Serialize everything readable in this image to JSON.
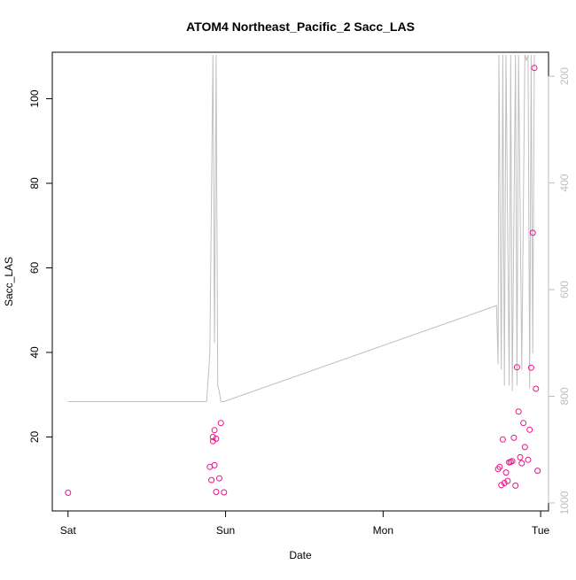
{
  "chart_data": {
    "type": "scatter",
    "title": "ATOM4 Northeast_Pacific_2 Sacc_LAS",
    "xlabel": "Date",
    "ylabel": "Sacc_LAS",
    "x_tick_labels": [
      "Sat",
      "Sun",
      "Mon",
      "Tue"
    ],
    "x_ticks": [
      0,
      1,
      2,
      3
    ],
    "xlim": [
      -0.1,
      3.05
    ],
    "ylim": [
      2.5,
      111
    ],
    "y_ticks": [
      20,
      40,
      60,
      80,
      100
    ],
    "y_tick_labels": [
      "20",
      "40",
      "60",
      "80",
      "100"
    ],
    "right_axis": {
      "ylim": [
        1015,
        155
      ],
      "ticks": [
        200,
        400,
        600,
        800,
        1000
      ],
      "tick_labels": [
        "200",
        "400",
        "600",
        "800",
        "1000"
      ],
      "color": "#bebebe"
    },
    "grid": false,
    "legend": "none",
    "colors": {
      "points": "#ee1289",
      "line": "#c0c0c0",
      "axes": "#000000"
    },
    "series": [
      {
        "type": "scatter",
        "x": [
          0.0,
          0.9,
          0.91,
          0.92,
          0.92,
          0.93,
          0.93,
          0.94,
          0.94,
          0.96,
          0.97,
          0.99,
          2.73,
          2.74,
          2.75,
          2.76,
          2.77,
          2.78,
          2.79,
          2.8,
          2.81,
          2.82,
          2.83,
          2.84,
          2.85,
          2.86,
          2.87,
          2.88,
          2.89,
          2.9,
          2.92,
          2.93,
          2.94,
          2.95,
          2.96,
          2.97,
          2.98
        ],
        "y": [
          6.8,
          12.9,
          9.8,
          19.0,
          20.0,
          13.3,
          21.6,
          7.0,
          19.6,
          10.2,
          23.3,
          6.9,
          12.4,
          12.9,
          8.6,
          19.4,
          9.1,
          11.6,
          9.6,
          14.0,
          14.1,
          14.3,
          19.8,
          8.5,
          36.5,
          26.0,
          15.2,
          13.8,
          23.3,
          17.6,
          14.6,
          21.7,
          36.4,
          68.3,
          107.3,
          31.4,
          12.0
        ]
      },
      {
        "type": "line",
        "axis": "right",
        "x": [
          0.0,
          0.6,
          0.88,
          0.9,
          0.92,
          0.93,
          0.94,
          0.95,
          0.96,
          0.97,
          0.99,
          0.99,
          2.72,
          2.73,
          2.735,
          2.75,
          2.76,
          2.77,
          2.78,
          2.8,
          2.81,
          2.82,
          2.84,
          2.85,
          2.86,
          2.88,
          2.9,
          2.91,
          2.92,
          2.93,
          2.94,
          2.95,
          2.96
        ],
        "y": [
          810,
          810,
          810,
          720,
          160,
          700,
          160,
          780,
          790,
          810,
          810,
          810,
          630,
          740,
          160,
          750,
          160,
          780,
          160,
          780,
          160,
          790,
          160,
          780,
          160,
          750,
          160,
          170,
          160,
          785,
          160,
          720,
          160
        ]
      }
    ]
  }
}
